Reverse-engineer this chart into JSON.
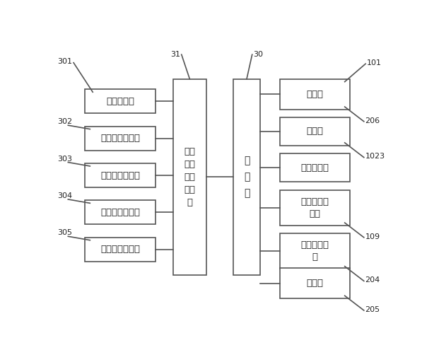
{
  "bg_color": "#ffffff",
  "line_color": "#555555",
  "box_edge_color": "#555555",
  "box_color": "#ffffff",
  "text_color": "#222222",
  "left_sensors": [
    {
      "label": "压力传感器",
      "num": "301"
    },
    {
      "label": "第一温度传感器",
      "num": "302"
    },
    {
      "label": "第一湿度传感器",
      "num": "303"
    },
    {
      "label": "第二温度传感器",
      "num": "304"
    },
    {
      "label": "第二湿度传感器",
      "num": "305"
    }
  ],
  "right_components": [
    {
      "label": "压缩机",
      "num_top": "101",
      "num_bot": "206"
    },
    {
      "label": "送风机",
      "num_top": "",
      "num_bot": "1023"
    },
    {
      "label": "流量调节阀",
      "num_top": "",
      "num_bot": ""
    },
    {
      "label": "三通比例调\n节阀",
      "num_top": "",
      "num_bot": "109"
    },
    {
      "label": "辅助电加热\n器",
      "num_top": "",
      "num_bot": "204"
    },
    {
      "label": "加湿器",
      "num_top": "",
      "num_bot": "205"
    }
  ],
  "collect_label": "传感\n器数\n据采\n集系\n统",
  "collect_num": "31",
  "ctrl_label": "控\n制\n器",
  "ctrl_num": "30",
  "figsize": [
    5.97,
    4.95
  ],
  "dpi": 100
}
